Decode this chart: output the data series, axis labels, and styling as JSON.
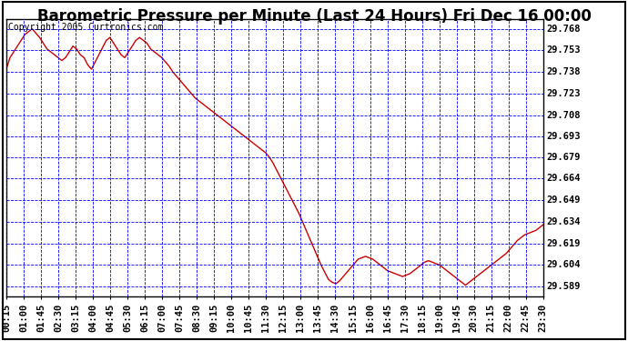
{
  "title": "Barometric Pressure per Minute (Last 24 Hours) Fri Dec 16 00:00",
  "copyright": "Copyright 2005 Curtronics.com",
  "yticks": [
    29.589,
    29.604,
    29.619,
    29.634,
    29.649,
    29.664,
    29.679,
    29.693,
    29.708,
    29.723,
    29.738,
    29.753,
    29.768
  ],
  "ymin": 29.582,
  "ymax": 29.775,
  "xtick_labels": [
    "00:15",
    "01:00",
    "01:45",
    "02:30",
    "03:15",
    "04:00",
    "04:45",
    "05:30",
    "06:15",
    "07:00",
    "07:45",
    "08:30",
    "09:15",
    "10:00",
    "10:45",
    "11:30",
    "12:15",
    "13:00",
    "13:45",
    "14:30",
    "15:15",
    "16:00",
    "16:45",
    "17:30",
    "18:15",
    "19:00",
    "19:45",
    "20:30",
    "21:15",
    "22:00",
    "22:45",
    "23:30"
  ],
  "line_color": "#cc0000",
  "bg_color": "#ffffff",
  "plot_bg_color": "#ffffff",
  "grid_color": "#0000ff",
  "title_fontsize": 12,
  "copyright_fontsize": 7,
  "tick_fontsize": 7.5,
  "pressure_data": [
    29.74,
    29.748,
    29.752,
    29.756,
    29.76,
    29.764,
    29.766,
    29.768,
    29.765,
    29.762,
    29.758,
    29.754,
    29.752,
    29.75,
    29.748,
    29.746,
    29.748,
    29.752,
    29.756,
    29.754,
    29.75,
    29.748,
    29.743,
    29.74,
    29.745,
    29.75,
    29.755,
    29.76,
    29.762,
    29.758,
    29.754,
    29.75,
    29.748,
    29.752,
    29.756,
    29.76,
    29.762,
    29.76,
    29.758,
    29.754,
    29.752,
    29.75,
    29.748,
    29.745,
    29.742,
    29.738,
    29.735,
    29.732,
    29.729,
    29.726,
    29.723,
    29.72,
    29.718,
    29.716,
    29.714,
    29.712,
    29.71,
    29.708,
    29.706,
    29.704,
    29.702,
    29.7,
    29.698,
    29.696,
    29.694,
    29.692,
    29.69,
    29.688,
    29.686,
    29.684,
    29.682,
    29.679,
    29.675,
    29.67,
    29.665,
    29.66,
    29.655,
    29.65,
    29.645,
    29.64,
    29.634,
    29.628,
    29.622,
    29.616,
    29.61,
    29.604,
    29.599,
    29.594,
    29.592,
    29.591,
    29.593,
    29.596,
    29.599,
    29.602,
    29.605,
    29.608,
    29.609,
    29.61,
    29.609,
    29.608,
    29.606,
    29.604,
    29.602,
    29.6,
    29.599,
    29.598,
    29.597,
    29.596,
    29.597,
    29.598,
    29.6,
    29.602,
    29.604,
    29.606,
    29.607,
    29.606,
    29.605,
    29.604,
    29.602,
    29.6,
    29.598,
    29.596,
    29.594,
    29.592,
    29.59,
    29.592,
    29.594,
    29.596,
    29.598,
    29.6,
    29.602,
    29.604,
    29.606,
    29.608,
    29.61,
    29.612,
    29.615,
    29.618,
    29.621,
    29.623,
    29.625,
    29.626,
    29.627,
    29.628,
    29.63,
    29.632
  ]
}
